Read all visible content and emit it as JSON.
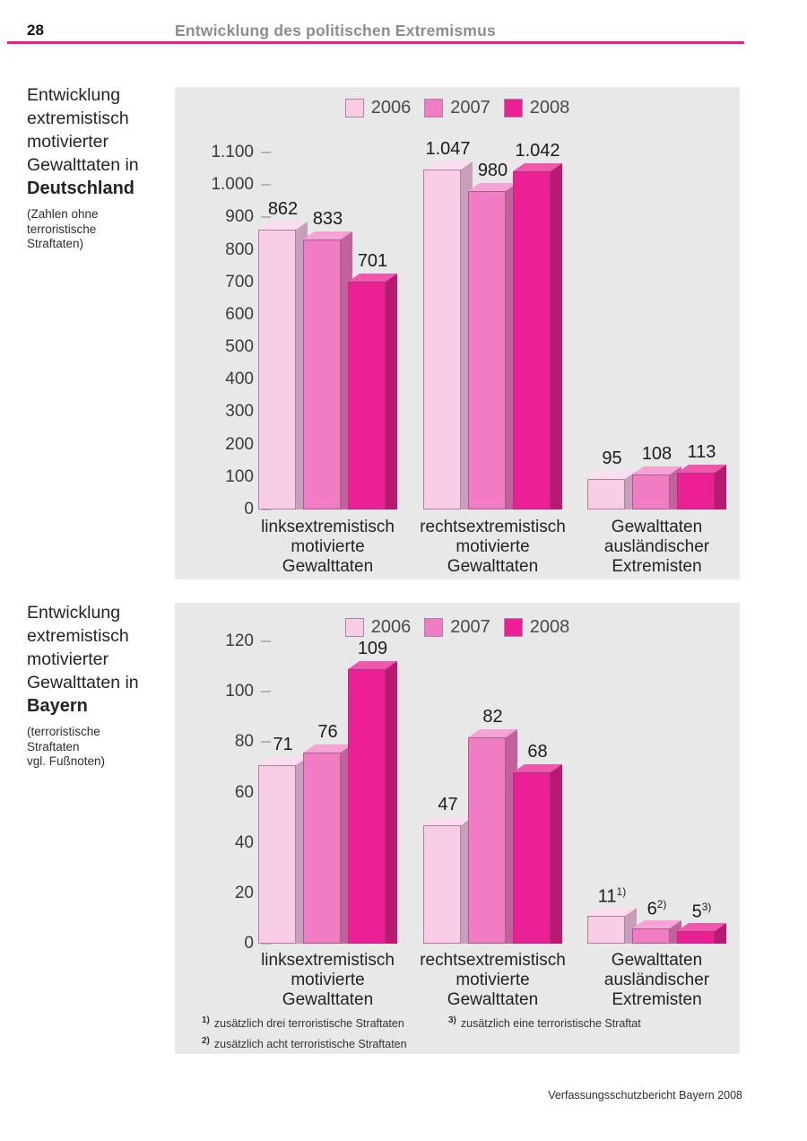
{
  "header": {
    "page_number": "28",
    "title": "Entwicklung des politischen Extremismus",
    "rule_color": "#ee1d8e"
  },
  "footer": {
    "text": "Verfassungsschutzbericht Bayern 2008"
  },
  "sections": [
    {
      "title_lines": [
        "Entwicklung",
        "extremistisch",
        "motivierter",
        "Gewalttaten in"
      ],
      "title_bold": "Deutschland",
      "note_lines": [
        "(Zahlen ohne",
        "terroristische",
        "Straftaten)"
      ]
    },
    {
      "title_lines": [
        "Entwicklung",
        "extremistisch",
        "motivierter",
        "Gewalttaten in"
      ],
      "title_bold": "Bayern",
      "note_lines": [
        "(terroristische",
        "Straftaten",
        "vgl. Fußnoten)"
      ]
    }
  ],
  "footnotes": {
    "col1": [
      {
        "marker": "1)",
        "text": "zusätzlich drei terroristische Straftaten"
      },
      {
        "marker": "2)",
        "text": "zusätzlich acht terroristische Straftaten"
      }
    ],
    "col2": [
      {
        "marker": "3)",
        "text": "zusätzlich eine terroristische Straftat"
      }
    ]
  },
  "colors": {
    "panel_bg": "#e9e8e8",
    "accent_rule": "#ee1d8e",
    "series": [
      {
        "name": "2006",
        "front": "#f8cce4",
        "top": "#fadeef",
        "side": "#c69fba"
      },
      {
        "name": "2007",
        "front": "#f07cc3",
        "top": "#f5a3d5",
        "side": "#c2629d"
      },
      {
        "name": "2008",
        "front": "#ec2095",
        "top": "#f156ad",
        "side": "#b81a71"
      }
    ]
  },
  "chart_data": [
    {
      "type": "bar",
      "title": "Entwicklung extremistisch motivierter Gewalttaten in Deutschland",
      "subtitle": "(Zahlen ohne terroristische Straftaten)",
      "categories": [
        "linksextremistisch motivierte Gewalttaten",
        "rechtsextremistisch motivierte Gewalttaten",
        "Gewalttaten ausländischer Extremisten"
      ],
      "series": [
        {
          "name": "2006",
          "values": [
            862,
            1047,
            95
          ],
          "labels": [
            "862",
            "1.047",
            "95"
          ]
        },
        {
          "name": "2007",
          "values": [
            833,
            980,
            108
          ],
          "labels": [
            "833",
            "980",
            "108"
          ]
        },
        {
          "name": "2008",
          "values": [
            701,
            1042,
            113
          ],
          "labels": [
            "701",
            "1.042",
            "113"
          ]
        }
      ],
      "ylim": [
        0,
        1100
      ],
      "ytick_step": 100,
      "ytick_labels": [
        "0",
        "100",
        "200",
        "300",
        "400",
        "500",
        "600",
        "700",
        "800",
        "900",
        "1.000",
        "1.100"
      ],
      "legend_position": "top",
      "grid": false
    },
    {
      "type": "bar",
      "title": "Entwicklung extremistisch motivierter Gewalttaten in Bayern",
      "subtitle": "(terroristische Straftaten vgl. Fußnoten)",
      "categories": [
        "linksextremistisch motivierte Gewalttaten",
        "rechtsextremistisch motivierte Gewalttaten",
        "Gewalttaten ausländischer Extremisten"
      ],
      "series": [
        {
          "name": "2006",
          "values": [
            71,
            47,
            11
          ],
          "labels": [
            "71",
            "47",
            "11"
          ],
          "label_sups": [
            null,
            null,
            "1)"
          ]
        },
        {
          "name": "2007",
          "values": [
            76,
            82,
            6
          ],
          "labels": [
            "76",
            "82",
            "6"
          ],
          "label_sups": [
            null,
            null,
            "2)"
          ]
        },
        {
          "name": "2008",
          "values": [
            109,
            68,
            5
          ],
          "labels": [
            "109",
            "68",
            "5"
          ],
          "label_sups": [
            null,
            null,
            "3)"
          ]
        }
      ],
      "ylim": [
        0,
        120
      ],
      "ytick_step": 20,
      "ytick_labels": [
        "0",
        "20",
        "40",
        "60",
        "80",
        "100",
        "120"
      ],
      "legend_position": "top",
      "grid": false
    }
  ]
}
